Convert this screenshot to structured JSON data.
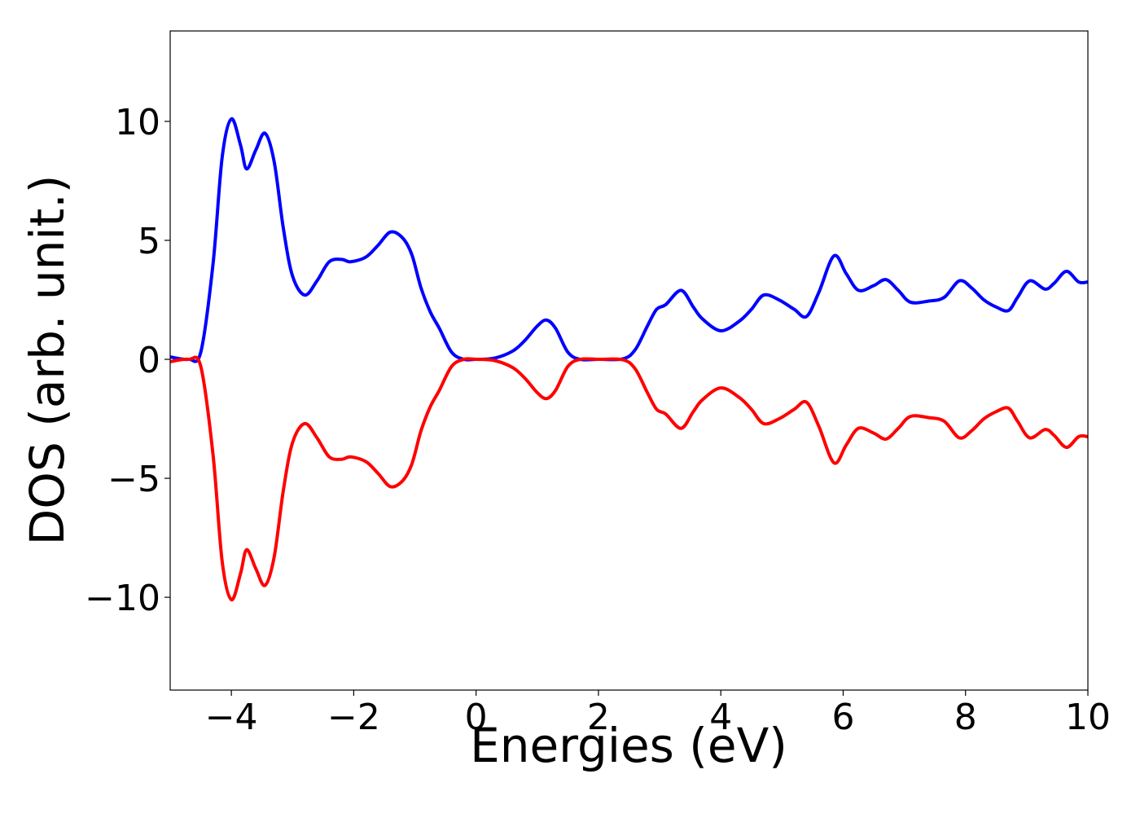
{
  "chart_data": {
    "type": "line",
    "xlabel": "Energies (eV)",
    "ylabel": "DOS (arb. unit.)",
    "xlim": [
      -5,
      10
    ],
    "ylim": [
      -13.9,
      13.8
    ],
    "xticks": [
      {
        "value": -4,
        "label": "−4"
      },
      {
        "value": -2,
        "label": "−2"
      },
      0,
      2,
      4,
      6,
      8,
      10
    ],
    "yticks": [
      {
        "value": -10,
        "label": "−10"
      },
      {
        "value": -5,
        "label": "−5"
      },
      0,
      5,
      10
    ],
    "x": [
      -5,
      -4.7,
      -4.5,
      -4.3,
      -4.15,
      -4.0,
      -3.85,
      -3.75,
      -3.6,
      -3.45,
      -3.3,
      -3.15,
      -3.0,
      -2.8,
      -2.6,
      -2.4,
      -2.2,
      -2.05,
      -1.8,
      -1.6,
      -1.4,
      -1.2,
      -1.05,
      -0.9,
      -0.75,
      -0.6,
      -0.4,
      -0.2,
      0,
      0.3,
      0.6,
      0.8,
      1.0,
      1.15,
      1.3,
      1.5,
      1.7,
      2.0,
      2.4,
      2.6,
      2.8,
      2.95,
      3.1,
      3.35,
      3.55,
      3.7,
      4.0,
      4.3,
      4.5,
      4.7,
      4.95,
      5.2,
      5.4,
      5.6,
      5.85,
      6.05,
      6.25,
      6.5,
      6.7,
      6.9,
      7.1,
      7.4,
      7.65,
      7.9,
      8.1,
      8.3,
      8.5,
      8.7,
      8.85,
      9.05,
      9.3,
      9.45,
      9.65,
      9.85,
      10
    ],
    "series": [
      {
        "color": "#0000ff",
        "values": [
          0.1,
          0,
          0.3,
          4,
          8.5,
          10.1,
          9,
          8.0,
          8.8,
          9.5,
          8.3,
          5.5,
          3.5,
          2.7,
          3.3,
          4.1,
          4.2,
          4.1,
          4.3,
          4.8,
          5.35,
          5.1,
          4.4,
          3.0,
          2.0,
          1.3,
          0.3,
          0,
          0,
          0.05,
          0.35,
          0.8,
          1.4,
          1.65,
          1.3,
          0.3,
          0,
          0,
          0.02,
          0.4,
          1.4,
          2.1,
          2.3,
          2.9,
          2.2,
          1.7,
          1.2,
          1.6,
          2.1,
          2.7,
          2.5,
          2.1,
          1.8,
          2.8,
          4.35,
          3.6,
          2.9,
          3.1,
          3.35,
          2.9,
          2.4,
          2.45,
          2.6,
          3.3,
          3.0,
          2.5,
          2.2,
          2.05,
          2.6,
          3.3,
          2.95,
          3.2,
          3.7,
          3.25,
          3.25
        ]
      },
      {
        "color": "#ff0000",
        "values": [
          -0.1,
          0,
          -0.3,
          -4,
          -8.5,
          -10.1,
          -9,
          -8.0,
          -8.8,
          -9.5,
          -8.3,
          -5.5,
          -3.5,
          -2.7,
          -3.3,
          -4.1,
          -4.2,
          -4.1,
          -4.3,
          -4.8,
          -5.35,
          -5.1,
          -4.4,
          -3.0,
          -2.0,
          -1.3,
          -0.3,
          0,
          0,
          -0.05,
          -0.35,
          -0.8,
          -1.4,
          -1.65,
          -1.3,
          -0.3,
          0,
          0,
          -0.02,
          -0.4,
          -1.4,
          -2.1,
          -2.3,
          -2.9,
          -2.2,
          -1.7,
          -1.2,
          -1.6,
          -2.1,
          -2.7,
          -2.5,
          -2.1,
          -1.8,
          -2.8,
          -4.35,
          -3.6,
          -2.9,
          -3.1,
          -3.35,
          -2.9,
          -2.4,
          -2.45,
          -2.6,
          -3.3,
          -3.0,
          -2.5,
          -2.2,
          -2.05,
          -2.6,
          -3.3,
          -2.95,
          -3.2,
          -3.7,
          -3.25,
          -3.25
        ]
      }
    ]
  }
}
